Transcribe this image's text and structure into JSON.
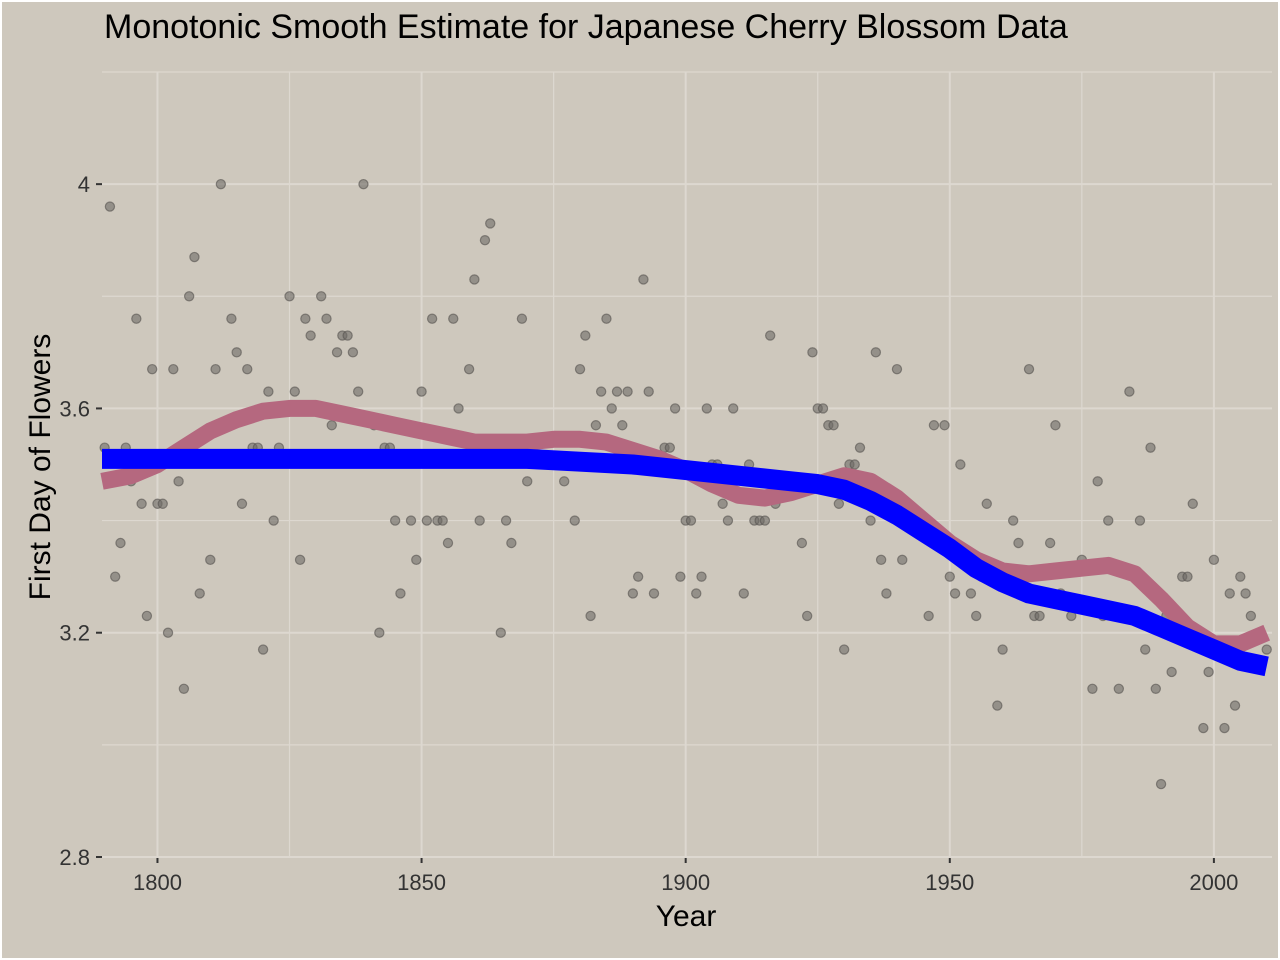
{
  "chart_data": {
    "type": "scatter",
    "title": "Monotonic Smooth Estimate for Japanese Cherry Blossom Data",
    "xlabel": "Year",
    "ylabel": "First Day of Flowers",
    "xlim": [
      1789.5,
      2011
    ],
    "ylim": [
      2.8,
      4.2
    ],
    "xticks": [
      1800,
      1850,
      1900,
      1950,
      2000
    ],
    "yticks": [
      2.8,
      3.2,
      3.6,
      4
    ],
    "ytick_labels": [
      "2.8",
      "3.2",
      "3.6",
      "4"
    ],
    "grid": true,
    "legend": "none",
    "colors": {
      "background": "#cec8bd",
      "grid": "#ddd8d0",
      "points": "#6e6a66",
      "loess_curve": "#b5687f",
      "monotonic_curve": "#0000ff"
    },
    "points": [
      [
        1790,
        3.53
      ],
      [
        1791,
        3.96
      ],
      [
        1792,
        3.3
      ],
      [
        1793,
        3.36
      ],
      [
        1794,
        3.53
      ],
      [
        1795,
        3.47
      ],
      [
        1796,
        3.76
      ],
      [
        1797,
        3.43
      ],
      [
        1798,
        3.23
      ],
      [
        1799,
        3.67
      ],
      [
        1800,
        3.43
      ],
      [
        1801,
        3.43
      ],
      [
        1802,
        3.2
      ],
      [
        1803,
        3.67
      ],
      [
        1804,
        3.47
      ],
      [
        1805,
        3.1
      ],
      [
        1806,
        3.8
      ],
      [
        1807,
        3.87
      ],
      [
        1808,
        3.27
      ],
      [
        1810,
        3.33
      ],
      [
        1811,
        3.67
      ],
      [
        1812,
        4.0
      ],
      [
        1813,
        3.57
      ],
      [
        1814,
        3.76
      ],
      [
        1815,
        3.7
      ],
      [
        1816,
        3.43
      ],
      [
        1817,
        3.67
      ],
      [
        1818,
        3.53
      ],
      [
        1819,
        3.53
      ],
      [
        1820,
        3.17
      ],
      [
        1821,
        3.63
      ],
      [
        1822,
        3.4
      ],
      [
        1823,
        3.53
      ],
      [
        1825,
        3.8
      ],
      [
        1826,
        3.63
      ],
      [
        1827,
        3.33
      ],
      [
        1828,
        3.76
      ],
      [
        1829,
        3.73
      ],
      [
        1831,
        3.8
      ],
      [
        1832,
        3.76
      ],
      [
        1833,
        3.57
      ],
      [
        1834,
        3.7
      ],
      [
        1835,
        3.73
      ],
      [
        1836,
        3.73
      ],
      [
        1837,
        3.7
      ],
      [
        1838,
        3.63
      ],
      [
        1839,
        4.0
      ],
      [
        1841,
        3.57
      ],
      [
        1842,
        3.2
      ],
      [
        1843,
        3.53
      ],
      [
        1844,
        3.53
      ],
      [
        1845,
        3.4
      ],
      [
        1846,
        3.27
      ],
      [
        1848,
        3.4
      ],
      [
        1849,
        3.33
      ],
      [
        1850,
        3.63
      ],
      [
        1851,
        3.4
      ],
      [
        1852,
        3.76
      ],
      [
        1853,
        3.4
      ],
      [
        1854,
        3.4
      ],
      [
        1855,
        3.36
      ],
      [
        1856,
        3.76
      ],
      [
        1857,
        3.6
      ],
      [
        1859,
        3.67
      ],
      [
        1860,
        3.83
      ],
      [
        1861,
        3.4
      ],
      [
        1862,
        3.9
      ],
      [
        1863,
        3.93
      ],
      [
        1865,
        3.2
      ],
      [
        1866,
        3.4
      ],
      [
        1867,
        3.36
      ],
      [
        1869,
        3.76
      ],
      [
        1870,
        3.47
      ],
      [
        1877,
        3.47
      ],
      [
        1879,
        3.4
      ],
      [
        1880,
        3.67
      ],
      [
        1881,
        3.73
      ],
      [
        1882,
        3.23
      ],
      [
        1883,
        3.57
      ],
      [
        1884,
        3.63
      ],
      [
        1885,
        3.76
      ],
      [
        1886,
        3.6
      ],
      [
        1887,
        3.63
      ],
      [
        1888,
        3.57
      ],
      [
        1889,
        3.63
      ],
      [
        1890,
        3.27
      ],
      [
        1891,
        3.3
      ],
      [
        1892,
        3.83
      ],
      [
        1893,
        3.63
      ],
      [
        1894,
        3.27
      ],
      [
        1896,
        3.53
      ],
      [
        1897,
        3.53
      ],
      [
        1898,
        3.6
      ],
      [
        1899,
        3.3
      ],
      [
        1900,
        3.4
      ],
      [
        1901,
        3.4
      ],
      [
        1902,
        3.27
      ],
      [
        1903,
        3.3
      ],
      [
        1904,
        3.6
      ],
      [
        1905,
        3.5
      ],
      [
        1906,
        3.5
      ],
      [
        1907,
        3.43
      ],
      [
        1908,
        3.4
      ],
      [
        1909,
        3.6
      ],
      [
        1911,
        3.27
      ],
      [
        1912,
        3.5
      ],
      [
        1913,
        3.4
      ],
      [
        1914,
        3.4
      ],
      [
        1915,
        3.4
      ],
      [
        1916,
        3.73
      ],
      [
        1917,
        3.43
      ],
      [
        1922,
        3.36
      ],
      [
        1923,
        3.23
      ],
      [
        1924,
        3.7
      ],
      [
        1925,
        3.6
      ],
      [
        1926,
        3.6
      ],
      [
        1927,
        3.57
      ],
      [
        1928,
        3.57
      ],
      [
        1929,
        3.43
      ],
      [
        1930,
        3.17
      ],
      [
        1931,
        3.5
      ],
      [
        1932,
        3.5
      ],
      [
        1933,
        3.53
      ],
      [
        1935,
        3.4
      ],
      [
        1936,
        3.7
      ],
      [
        1937,
        3.33
      ],
      [
        1938,
        3.27
      ],
      [
        1940,
        3.67
      ],
      [
        1941,
        3.33
      ],
      [
        1946,
        3.23
      ],
      [
        1947,
        3.57
      ],
      [
        1949,
        3.57
      ],
      [
        1950,
        3.3
      ],
      [
        1951,
        3.27
      ],
      [
        1952,
        3.5
      ],
      [
        1954,
        3.27
      ],
      [
        1955,
        3.23
      ],
      [
        1956,
        3.3
      ],
      [
        1957,
        3.43
      ],
      [
        1958,
        3.3
      ],
      [
        1959,
        3.07
      ],
      [
        1960,
        3.17
      ],
      [
        1962,
        3.4
      ],
      [
        1963,
        3.36
      ],
      [
        1965,
        3.67
      ],
      [
        1966,
        3.23
      ],
      [
        1967,
        3.23
      ],
      [
        1969,
        3.36
      ],
      [
        1970,
        3.57
      ],
      [
        1971,
        3.27
      ],
      [
        1973,
        3.23
      ],
      [
        1975,
        3.33
      ],
      [
        1977,
        3.1
      ],
      [
        1978,
        3.47
      ],
      [
        1979,
        3.23
      ],
      [
        1980,
        3.4
      ],
      [
        1982,
        3.1
      ],
      [
        1984,
        3.63
      ],
      [
        1986,
        3.4
      ],
      [
        1987,
        3.17
      ],
      [
        1988,
        3.53
      ],
      [
        1989,
        3.1
      ],
      [
        1990,
        2.93
      ],
      [
        1991,
        3.23
      ],
      [
        1992,
        3.13
      ],
      [
        1994,
        3.3
      ],
      [
        1995,
        3.3
      ],
      [
        1996,
        3.43
      ],
      [
        1998,
        3.03
      ],
      [
        1999,
        3.13
      ],
      [
        2000,
        3.33
      ],
      [
        2002,
        3.03
      ],
      [
        2003,
        3.27
      ],
      [
        2004,
        3.07
      ],
      [
        2005,
        3.3
      ],
      [
        2006,
        3.27
      ],
      [
        2007,
        3.23
      ],
      [
        2010,
        3.17
      ]
    ],
    "series": [
      {
        "type": "line",
        "style": "loess",
        "x": [
          1789.5,
          1795,
          1800,
          1805,
          1810,
          1815,
          1820,
          1825,
          1830,
          1835,
          1840,
          1845,
          1850,
          1855,
          1860,
          1865,
          1870,
          1875,
          1880,
          1885,
          1890,
          1895,
          1900,
          1905,
          1910,
          1915,
          1920,
          1925,
          1930,
          1935,
          1940,
          1945,
          1950,
          1955,
          1960,
          1965,
          1970,
          1975,
          1980,
          1985,
          1990,
          1995,
          2000,
          2005,
          2010
        ],
        "y": [
          3.47,
          3.48,
          3.5,
          3.53,
          3.56,
          3.58,
          3.595,
          3.6,
          3.6,
          3.59,
          3.58,
          3.57,
          3.56,
          3.55,
          3.54,
          3.54,
          3.54,
          3.545,
          3.545,
          3.54,
          3.525,
          3.51,
          3.49,
          3.465,
          3.445,
          3.44,
          3.45,
          3.465,
          3.48,
          3.47,
          3.44,
          3.4,
          3.36,
          3.33,
          3.31,
          3.305,
          3.31,
          3.315,
          3.32,
          3.305,
          3.26,
          3.21,
          3.18,
          3.18,
          3.2
        ]
      },
      {
        "type": "line",
        "style": "monotonic",
        "x": [
          1789.5,
          1800,
          1820,
          1840,
          1860,
          1870,
          1880,
          1890,
          1900,
          1910,
          1920,
          1925,
          1930,
          1935,
          1940,
          1945,
          1950,
          1955,
          1960,
          1965,
          1970,
          1975,
          1980,
          1985,
          1990,
          1995,
          2000,
          2005,
          2010
        ],
        "y": [
          3.51,
          3.51,
          3.51,
          3.51,
          3.51,
          3.51,
          3.505,
          3.5,
          3.49,
          3.48,
          3.47,
          3.465,
          3.455,
          3.435,
          3.41,
          3.38,
          3.35,
          3.315,
          3.29,
          3.27,
          3.26,
          3.25,
          3.24,
          3.23,
          3.21,
          3.19,
          3.17,
          3.15,
          3.14
        ]
      }
    ]
  }
}
